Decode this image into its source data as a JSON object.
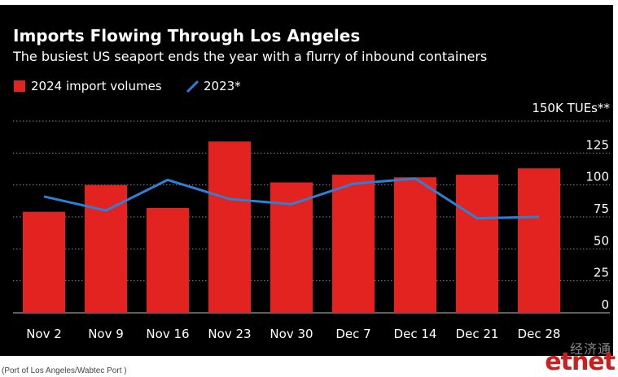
{
  "chart_data": {
    "type": "bar",
    "title": "Imports Flowing Through Los Angeles",
    "subtitle": "The busiest US seaport ends the year with a flurry of inbound containers",
    "unit_label": "150K TUEs**",
    "categories": [
      "Nov 2",
      "Nov 9",
      "Nov 16",
      "Nov 23",
      "Nov 30",
      "Dec 7",
      "Dec 14",
      "Dec 21",
      "Dec 28"
    ],
    "series": [
      {
        "name": "2024 import volumes",
        "type": "bar",
        "color": "#e3231f",
        "values": [
          79,
          100,
          82,
          134,
          102,
          108,
          106,
          108,
          113
        ]
      },
      {
        "name": "2023*",
        "type": "line",
        "color": "#2f7fd5",
        "values": [
          91,
          80,
          104,
          89,
          85,
          101,
          105,
          74,
          75
        ]
      }
    ],
    "yticks": [
      0,
      25,
      50,
      75,
      100,
      125
    ],
    "ylim": [
      0,
      150
    ],
    "y_axis_side": "right",
    "grid": true,
    "legend_position": "top-left",
    "source": "(Port of Los Angeles/Wabtec Port )"
  },
  "watermark": {
    "cn": "经济通",
    "en": "etnet"
  }
}
